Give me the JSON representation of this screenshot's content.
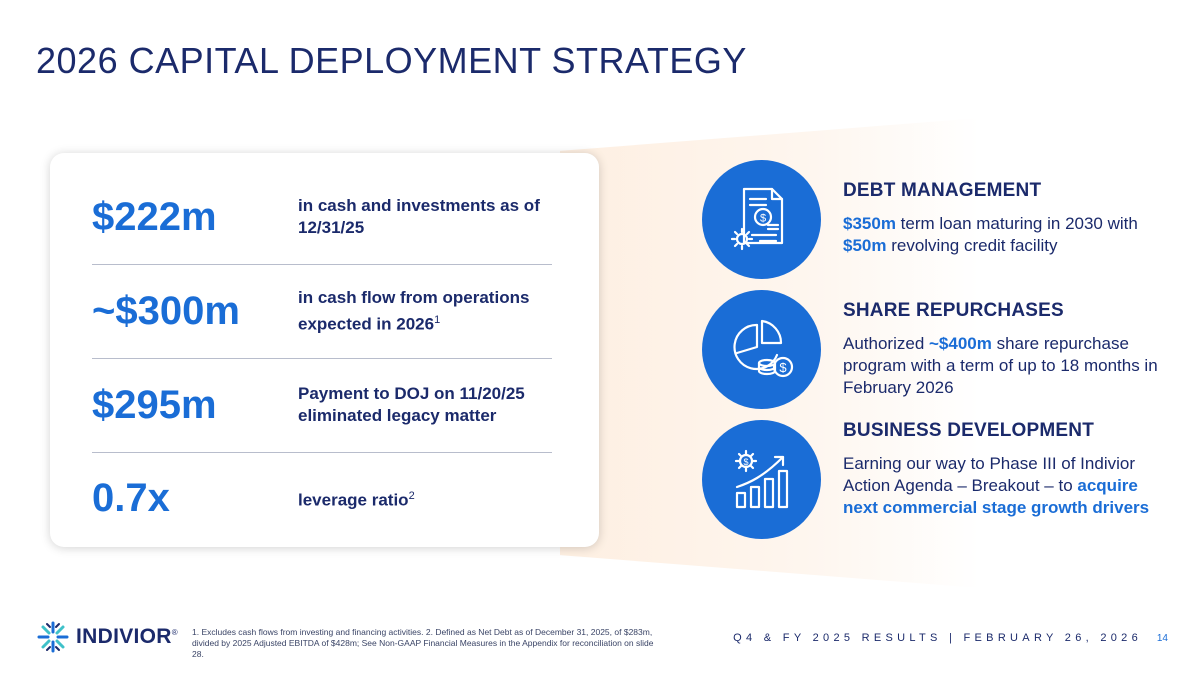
{
  "title": "2026 CAPITAL DEPLOYMENT STRATEGY",
  "stats": [
    {
      "value": "$222m",
      "desc": "in cash and investments as of 12/31/25",
      "sup": ""
    },
    {
      "value": "~$300m",
      "desc": "in cash flow from operations expected in 2026",
      "sup": "1"
    },
    {
      "value": "$295m",
      "desc": "Payment to DOJ on 11/20/25 eliminated legacy matter",
      "sup": ""
    },
    {
      "value": "0.7x",
      "desc": "leverage ratio",
      "sup": "2"
    }
  ],
  "sections": {
    "debt": {
      "heading": "DEBT MANAGEMENT",
      "hl1": "$350m",
      "t1": " term loan maturing in 2030 with ",
      "hl2": "$50m",
      "t2": " revolving credit facility",
      "icon": "finance-document-gear-icon"
    },
    "repurchase": {
      "heading": "SHARE REPURCHASES",
      "t1": "Authorized ",
      "hl1": "~$400m",
      "t2": " share repurchase program with a term of up to 18 months in February 2026",
      "icon": "pie-chart-coins-icon"
    },
    "business": {
      "heading": "BUSINESS DEVELOPMENT",
      "t1": "Earning our way to Phase III of Indivior Action Agenda – Breakout – to ",
      "hl1": "acquire next commercial stage growth drivers",
      "icon": "growth-bar-chart-icon"
    }
  },
  "colors": {
    "accent": "#1a6dd6",
    "navy": "#1b2a6b",
    "glow": "#fdecdc"
  },
  "logo": {
    "name": "INDIVIOR",
    "mark": "®"
  },
  "footnote": "1. Excludes cash flows from investing and financing activities. 2. Defined as Net Debt as of December 31, 2025, of $283m, divided by 2025 Adjusted EBITDA of $428m; See Non-GAAP Financial Measures in the Appendix for reconciliation on slide 28.",
  "footer": {
    "event": "Q4 & FY 2025 RESULTS | FEBRUARY 26, 2026",
    "page": "14"
  }
}
